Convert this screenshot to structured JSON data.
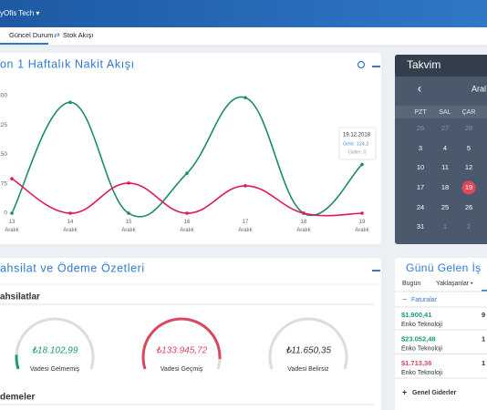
{
  "header": {
    "brand": "yOfis Tech ▾"
  },
  "tabs": [
    "Güncel Durum",
    "Stok Akışı"
  ],
  "chart_data": {
    "type": "line",
    "title": "on 1 Haftalık Nakit Akışı",
    "categories": [
      "13 Aralık",
      "14 Aralık",
      "15 Aralık",
      "16 Aralık",
      "17 Aralık",
      "18 Aralık",
      "19 Aralık"
    ],
    "series": [
      {
        "color": "#1a8c6a",
        "values": [
          0,
          283,
          0,
          102,
          295,
          0,
          124.2
        ]
      },
      {
        "color": "#e0195a",
        "values": [
          88,
          0,
          77,
          0,
          70,
          0,
          0
        ]
      }
    ],
    "ylim": [
      0,
      300
    ],
    "yticks": [
      0,
      75,
      150,
      225,
      300
    ],
    "grid": false,
    "tooltip": {
      "title": "19.12.2018",
      "lines": [
        "Gelir: 124.2",
        "Gider: 0"
      ]
    }
  },
  "calendar": {
    "title": "Takvim",
    "month": "Aral",
    "weekdays": [
      "PZT",
      "SAL",
      "ÇAR"
    ],
    "weeks": [
      [
        "26",
        "27",
        "28"
      ],
      [
        "3",
        "4",
        "5"
      ],
      [
        "10",
        "11",
        "12"
      ],
      [
        "17",
        "18",
        "19"
      ],
      [
        "24",
        "25",
        "26"
      ],
      [
        "31",
        "1",
        "2"
      ]
    ]
  },
  "summary": {
    "title": "ahsilat ve Ödeme Özetleri",
    "receivables_heading": "ahsilatlar",
    "gauges": [
      {
        "amount": "₺18.102,99",
        "label": "Vadesi Gelmemiş"
      },
      {
        "amount": "₺133.945,72",
        "label": "Vadesi Geçmiş"
      },
      {
        "amount": "₺11.650,35",
        "label": "Vadesi Belirsiz"
      }
    ],
    "payments_heading": "demeler"
  },
  "due": {
    "title": "Günü Gelen İş",
    "tabs": [
      "Bugün",
      "Yaklaşanlar •"
    ],
    "section": "Faturalar",
    "items": [
      {
        "amount": "$1.900,41",
        "company": "Enko Teknoloji",
        "right": "9"
      },
      {
        "amount": "$23.052,48",
        "company": "Enko Teknoloji",
        "right": "1"
      },
      {
        "amount": "$1.713,36",
        "company": "Enko Teknoloji",
        "right": "1"
      }
    ],
    "footer": "Genel Giderler"
  }
}
